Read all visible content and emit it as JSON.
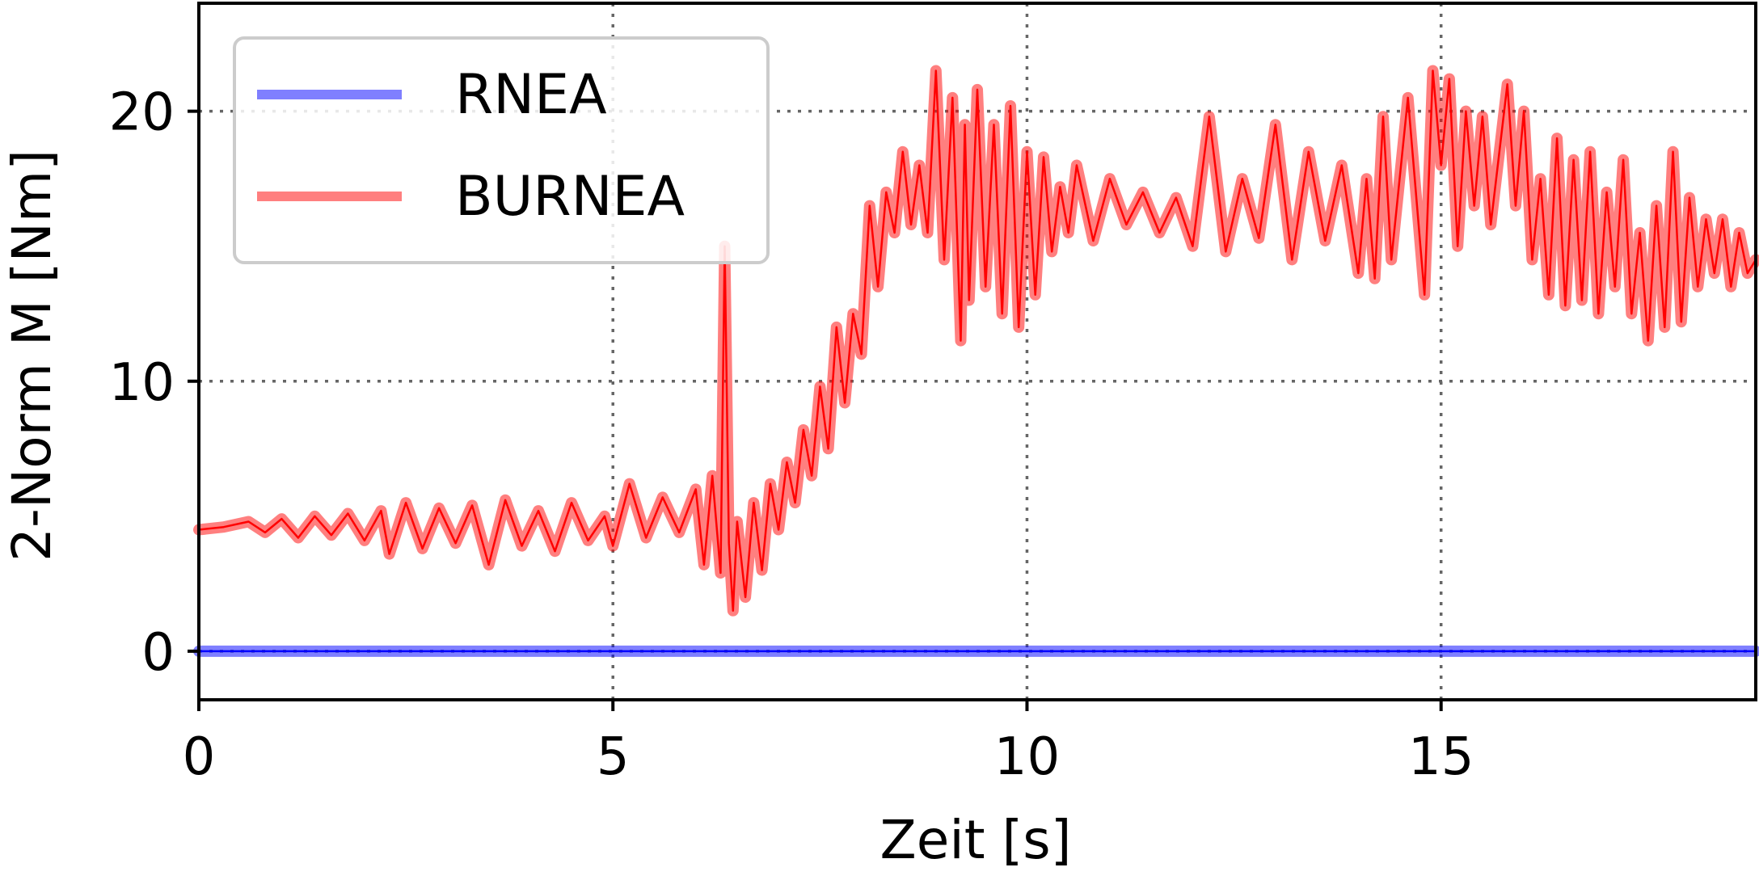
{
  "chart_data": {
    "type": "line",
    "title": "",
    "xlabel": "Zeit [s]",
    "ylabel": "2-Norm M [Nm]",
    "xlim": [
      0,
      18.8
    ],
    "ylim": [
      -1.8,
      24
    ],
    "xticks": [
      "0",
      "5",
      "10",
      "15"
    ],
    "xtick_values": [
      0,
      5,
      10,
      15
    ],
    "yticks": [
      "0",
      "10",
      "20"
    ],
    "ytick_values": [
      0,
      10,
      20
    ],
    "grid": true,
    "legend_position": "upper-left",
    "series": [
      {
        "name": "RNEA",
        "color": "#0000ff",
        "x": [
          0,
          18.8
        ],
        "y": [
          0.0,
          0.0
        ]
      },
      {
        "name": "BURNEA",
        "color": "#ff0000",
        "x": [
          0.0,
          0.3,
          0.6,
          0.8,
          1.0,
          1.2,
          1.4,
          1.6,
          1.8,
          2.0,
          2.2,
          2.3,
          2.5,
          2.7,
          2.9,
          3.1,
          3.3,
          3.5,
          3.7,
          3.9,
          4.1,
          4.3,
          4.5,
          4.7,
          4.9,
          5.0,
          5.2,
          5.4,
          5.6,
          5.8,
          6.0,
          6.1,
          6.2,
          6.3,
          6.35,
          6.4,
          6.45,
          6.5,
          6.6,
          6.7,
          6.8,
          6.9,
          7.0,
          7.1,
          7.2,
          7.3,
          7.4,
          7.5,
          7.6,
          7.7,
          7.8,
          7.9,
          8.0,
          8.1,
          8.2,
          8.3,
          8.4,
          8.5,
          8.6,
          8.7,
          8.8,
          8.9,
          9.0,
          9.1,
          9.2,
          9.25,
          9.3,
          9.4,
          9.5,
          9.6,
          9.7,
          9.8,
          9.9,
          10.0,
          10.1,
          10.2,
          10.3,
          10.4,
          10.5,
          10.6,
          10.8,
          11.0,
          11.2,
          11.4,
          11.6,
          11.8,
          12.0,
          12.2,
          12.4,
          12.6,
          12.8,
          13.0,
          13.2,
          13.4,
          13.6,
          13.8,
          14.0,
          14.1,
          14.2,
          14.3,
          14.4,
          14.6,
          14.8,
          14.9,
          15.0,
          15.1,
          15.2,
          15.3,
          15.4,
          15.5,
          15.6,
          15.8,
          15.9,
          16.0,
          16.1,
          16.2,
          16.3,
          16.4,
          16.5,
          16.6,
          16.7,
          16.8,
          16.9,
          17.0,
          17.1,
          17.2,
          17.3,
          17.4,
          17.5,
          17.6,
          17.7,
          17.8,
          17.9,
          18.0,
          18.1,
          18.2,
          18.3,
          18.4,
          18.5,
          18.6,
          18.7,
          18.8
        ],
        "y": [
          4.5,
          4.6,
          4.8,
          4.4,
          4.9,
          4.2,
          5.0,
          4.3,
          5.1,
          4.1,
          5.2,
          3.6,
          5.5,
          3.8,
          5.3,
          4.0,
          5.4,
          3.2,
          5.6,
          3.9,
          5.2,
          3.7,
          5.5,
          4.1,
          5.0,
          3.9,
          6.2,
          4.2,
          5.7,
          4.4,
          6.0,
          3.2,
          6.5,
          2.9,
          15.0,
          4.0,
          1.5,
          4.8,
          2.0,
          5.5,
          3.0,
          6.2,
          4.5,
          7.0,
          5.5,
          8.2,
          6.5,
          9.8,
          7.5,
          12.0,
          9.2,
          12.5,
          11.0,
          16.5,
          13.5,
          17.0,
          15.5,
          18.5,
          15.8,
          18.0,
          15.5,
          21.5,
          14.5,
          20.5,
          11.5,
          19.5,
          13.0,
          20.8,
          13.5,
          19.5,
          12.5,
          20.2,
          12.0,
          18.5,
          13.2,
          18.3,
          14.8,
          17.2,
          15.5,
          18.0,
          15.2,
          17.5,
          15.8,
          17.0,
          15.5,
          16.8,
          15.0,
          19.8,
          14.8,
          17.5,
          15.3,
          19.5,
          14.5,
          18.5,
          15.2,
          18.0,
          14.0,
          17.5,
          13.8,
          19.8,
          14.5,
          20.5,
          13.2,
          21.5,
          18.0,
          21.2,
          15.0,
          20.0,
          16.5,
          19.8,
          15.8,
          21.0,
          16.5,
          20.0,
          14.5,
          17.5,
          13.2,
          19.0,
          12.8,
          18.2,
          13.0,
          18.5,
          12.5,
          17.0,
          13.5,
          18.2,
          12.5,
          15.5,
          11.5,
          16.5,
          12.0,
          18.5,
          12.2,
          16.8,
          13.5,
          16.0,
          14.0,
          16.0,
          13.5,
          15.5,
          14.0,
          14.5
        ]
      }
    ]
  }
}
